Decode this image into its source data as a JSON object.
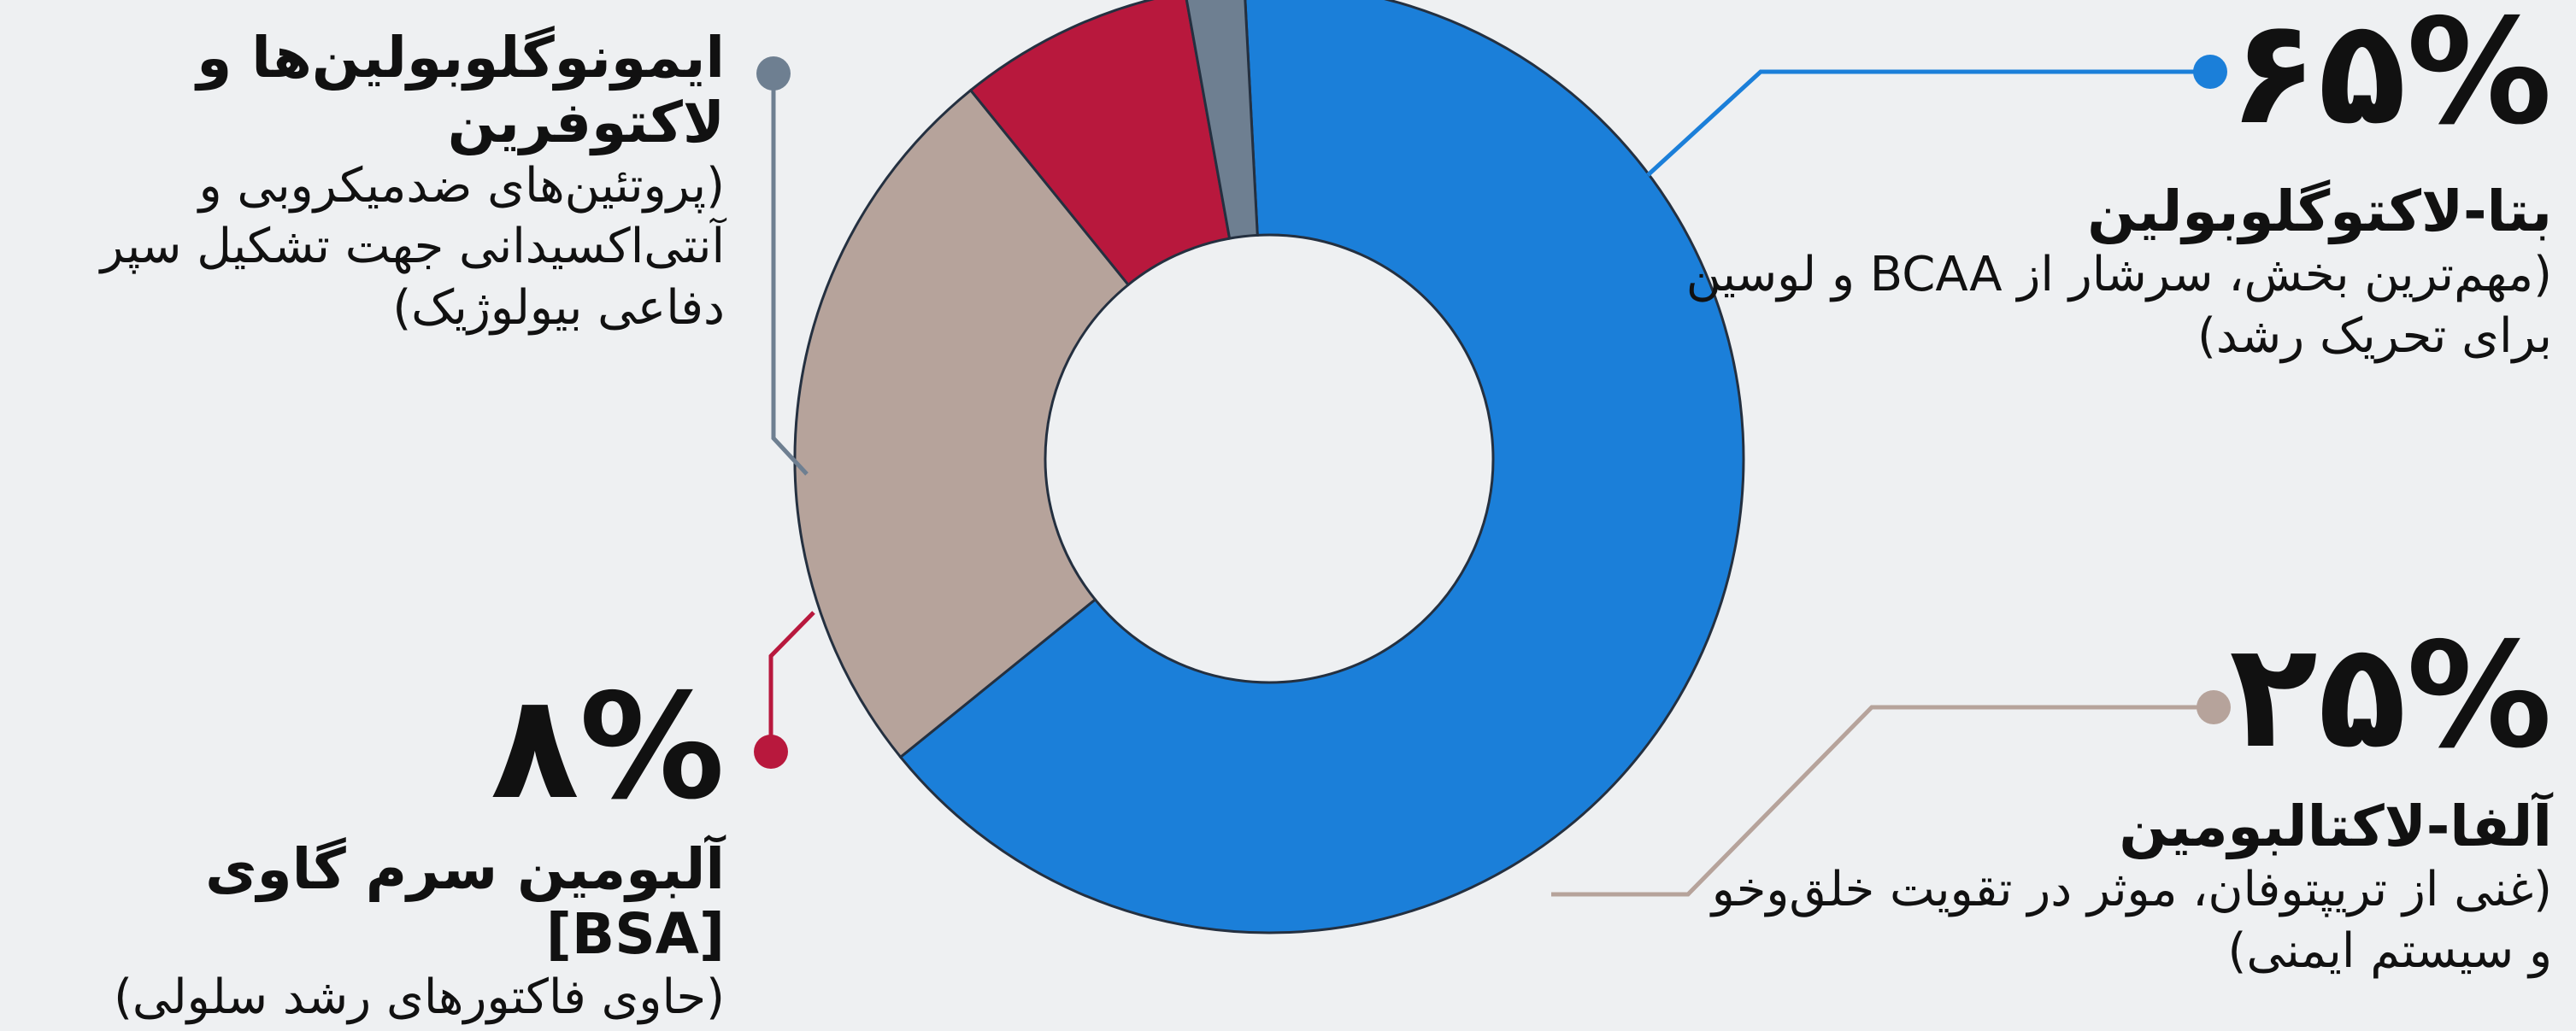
{
  "chart_data": {
    "type": "pie",
    "donut": true,
    "slices": [
      {
        "key": "beta",
        "value": 65,
        "percent_label": "۶۵%",
        "title": "بتا-لاکتوگلوبولین",
        "description": "(مهم‌ترین بخش، سرشار از BCAA و لوسین برای تحریک رشد)",
        "color": "#1b7fd9"
      },
      {
        "key": "alpha",
        "value": 25,
        "percent_label": "۲۵%",
        "title": "آلفا-لاکتالبومین",
        "description": "(غنی از تریپتوفان، موثر در تقویت خلق‌وخو و سیستم ایمنی)",
        "color": "#b6a39b"
      },
      {
        "key": "bsa",
        "value": 8,
        "percent_label": "۸%",
        "title": "آلبومین سرم گاوی [BSA]",
        "description": "(حاوی فاکتورهای رشد سلولی)",
        "color": "#b8183d"
      },
      {
        "key": "imm",
        "value": 2,
        "title": "ایمونوگلوبولین‌ها و لاکتوفرین",
        "description": "(پروتئین‌های ضدمیکروبی و آنتی‌اکسیدانی جهت تشکیل سپر دفاعی بیولوژیک)",
        "color": "#6e7f91"
      }
    ]
  }
}
